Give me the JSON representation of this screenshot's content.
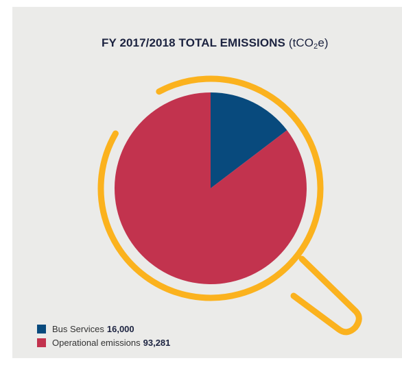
{
  "chart_data": {
    "type": "pie",
    "title": "FY 2017/2018 TOTAL EMISSIONS",
    "unit": {
      "prefix": "(tCO",
      "subscript": "2",
      "suffix": "e)"
    },
    "slices": [
      {
        "name": "Bus Services",
        "value": 16000,
        "value_label": "16,000",
        "color": "#084a7d"
      },
      {
        "name": "Operational emissions",
        "value": 93281,
        "value_label": "93,281",
        "color": "#c2334e"
      }
    ],
    "legend_position": "bottom-left"
  },
  "colors": {
    "background": "#ebebe9",
    "magnifier_ring": "#fbb21e"
  },
  "icons": [
    "magnifying-glass-icon"
  ]
}
